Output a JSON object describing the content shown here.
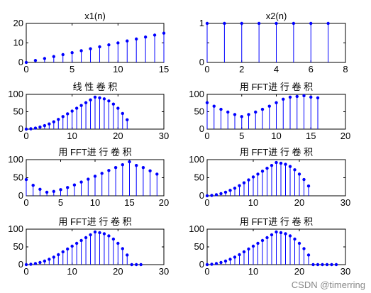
{
  "colors": {
    "stem": "#0000ff",
    "axis": "#000000",
    "background": "#ffffff"
  },
  "watermark": "CSDN @timerring",
  "chart_data": [
    {
      "id": "p1",
      "type": "stem",
      "title": "x1(n)",
      "xlim": [
        0,
        15
      ],
      "ylim": [
        0,
        20
      ],
      "xticks": [
        0,
        5,
        10,
        15
      ],
      "yticks": [
        0,
        10,
        20
      ],
      "x": [
        0,
        1,
        2,
        3,
        4,
        5,
        6,
        7,
        8,
        9,
        10,
        11,
        12,
        13,
        14,
        15
      ],
      "y": [
        0,
        1,
        2,
        3,
        4,
        5,
        6,
        7,
        8,
        9,
        10,
        11,
        12,
        13,
        14,
        15
      ]
    },
    {
      "id": "p2",
      "type": "stem",
      "title": "x2(n)",
      "xlim": [
        0,
        8
      ],
      "ylim": [
        0,
        1
      ],
      "xticks": [
        0,
        2,
        4,
        6,
        8
      ],
      "yticks": [
        0,
        0.5,
        1
      ],
      "x": [
        0,
        1,
        2,
        3,
        4,
        5,
        6,
        7
      ],
      "y": [
        1,
        1,
        1,
        1,
        1,
        1,
        1,
        1
      ]
    },
    {
      "id": "p3",
      "type": "stem",
      "title": "线 性 卷 积",
      "xlim": [
        0,
        30
      ],
      "ylim": [
        0,
        100
      ],
      "xticks": [
        0,
        10,
        20,
        30
      ],
      "yticks": [
        0,
        50,
        100
      ],
      "x": [
        0,
        1,
        2,
        3,
        4,
        5,
        6,
        7,
        8,
        9,
        10,
        11,
        12,
        13,
        14,
        15,
        16,
        17,
        18,
        19,
        20,
        21,
        22
      ],
      "y": [
        0,
        1,
        3,
        6,
        10,
        15,
        21,
        28,
        36,
        44,
        52,
        60,
        68,
        76,
        84,
        92,
        90,
        87,
        81,
        72,
        60,
        45,
        27
      ]
    },
    {
      "id": "p4",
      "type": "stem",
      "title": "用 FFT进 行 卷 积",
      "xlim": [
        0,
        20
      ],
      "ylim": [
        0,
        100
      ],
      "xticks": [
        0,
        5,
        10,
        15,
        20
      ],
      "yticks": [
        0,
        50,
        100
      ],
      "x": [
        0,
        1,
        2,
        3,
        4,
        5,
        6,
        7,
        8,
        9,
        10,
        11,
        12,
        13,
        14,
        15,
        16
      ],
      "y": [
        76,
        66,
        57,
        49,
        42,
        36,
        42,
        49,
        57,
        66,
        76,
        86,
        92,
        94,
        96,
        92,
        90
      ]
    },
    {
      "id": "p5",
      "type": "stem",
      "title": "用 FFT进 行 卷 积",
      "xlim": [
        0,
        20
      ],
      "ylim": [
        0,
        100
      ],
      "xticks": [
        0,
        5,
        10,
        15,
        20
      ],
      "yticks": [
        0,
        50,
        100
      ],
      "x": [
        0,
        1,
        2,
        3,
        4,
        5,
        6,
        7,
        8,
        9,
        10,
        11,
        12,
        13,
        14,
        15,
        16,
        17,
        18,
        19
      ],
      "y": [
        45,
        29,
        18,
        10,
        12,
        17,
        23,
        30,
        38,
        46,
        54,
        62,
        70,
        78,
        86,
        94,
        84,
        78,
        69,
        60
      ]
    },
    {
      "id": "p6",
      "type": "stem",
      "title": "用 FFT进 行 卷 积",
      "xlim": [
        0,
        30
      ],
      "ylim": [
        0,
        100
      ],
      "xticks": [
        0,
        10,
        20,
        30
      ],
      "yticks": [
        0,
        50,
        100
      ],
      "x": [
        0,
        1,
        2,
        3,
        4,
        5,
        6,
        7,
        8,
        9,
        10,
        11,
        12,
        13,
        14,
        15,
        16,
        17,
        18,
        19,
        20,
        21,
        22
      ],
      "y": [
        0,
        1,
        3,
        6,
        10,
        15,
        21,
        28,
        36,
        44,
        52,
        60,
        68,
        76,
        84,
        92,
        90,
        87,
        81,
        72,
        60,
        45,
        27
      ]
    },
    {
      "id": "p7",
      "type": "stem",
      "title": "用 FFT进 行 卷 积",
      "xlim": [
        0,
        30
      ],
      "ylim": [
        0,
        100
      ],
      "xticks": [
        0,
        10,
        20,
        30
      ],
      "yticks": [
        0,
        50,
        100
      ],
      "x": [
        0,
        1,
        2,
        3,
        4,
        5,
        6,
        7,
        8,
        9,
        10,
        11,
        12,
        13,
        14,
        15,
        16,
        17,
        18,
        19,
        20,
        21,
        22,
        23,
        24,
        25
      ],
      "y": [
        0,
        1,
        3,
        6,
        10,
        15,
        21,
        28,
        36,
        44,
        52,
        60,
        68,
        76,
        84,
        92,
        90,
        87,
        81,
        72,
        60,
        45,
        27,
        0,
        0,
        0
      ]
    },
    {
      "id": "p8",
      "type": "stem",
      "title": "用 FFT进 行 卷 积",
      "xlim": [
        0,
        30
      ],
      "ylim": [
        0,
        100
      ],
      "xticks": [
        0,
        10,
        20,
        30
      ],
      "yticks": [
        0,
        50,
        100
      ],
      "x": [
        0,
        1,
        2,
        3,
        4,
        5,
        6,
        7,
        8,
        9,
        10,
        11,
        12,
        13,
        14,
        15,
        16,
        17,
        18,
        19,
        20,
        21,
        22,
        23,
        24,
        25,
        26,
        27,
        28
      ],
      "y": [
        0,
        1,
        3,
        6,
        10,
        15,
        21,
        28,
        36,
        44,
        52,
        60,
        68,
        76,
        84,
        92,
        90,
        87,
        81,
        72,
        60,
        45,
        27,
        0,
        0,
        0,
        0,
        0,
        0
      ]
    }
  ]
}
